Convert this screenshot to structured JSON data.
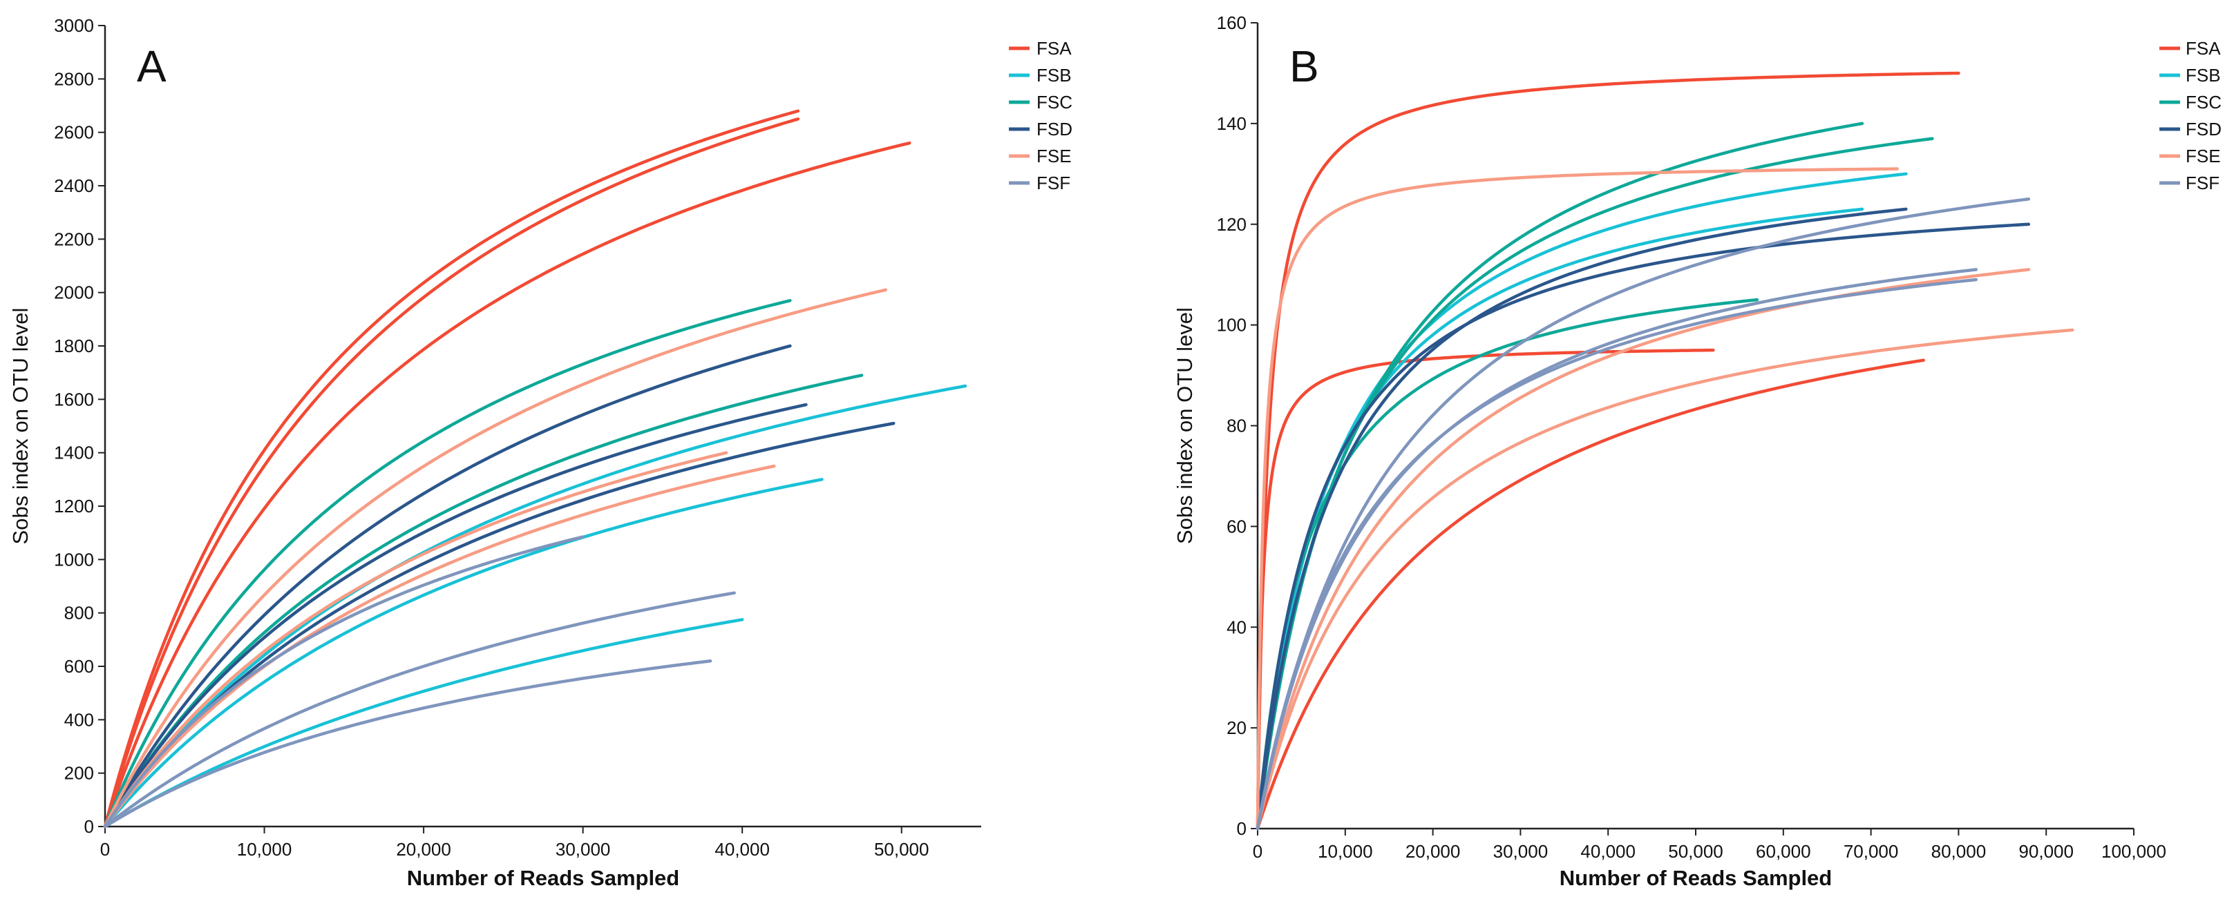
{
  "colors": {
    "FSA": "#f24a34",
    "FSB": "#18c1d6",
    "FSC": "#0ea898",
    "FSD": "#2a568b",
    "FSE": "#f79c84",
    "FSF": "#7f95bd",
    "axis": "#222222"
  },
  "chart_data": [
    {
      "type": "line",
      "panel_label": "A",
      "title": "",
      "xlabel": "Number of Reads Sampled",
      "ylabel": "Sobs index on OTU level",
      "xlim": [
        0,
        55000
      ],
      "ylim": [
        0,
        3000
      ],
      "x_ticks": [
        0,
        10000,
        20000,
        30000,
        40000,
        50000
      ],
      "x_tick_labels": [
        "0",
        "10,000",
        "20,000",
        "30,000",
        "40,000",
        "50,000"
      ],
      "y_ticks": [
        0,
        200,
        400,
        600,
        800,
        1000,
        1200,
        1400,
        1600,
        1800,
        2000,
        2200,
        2400,
        2600,
        2800,
        3000
      ],
      "y_tick_labels": [
        "0",
        "200",
        "400",
        "600",
        "800",
        "1000",
        "1200",
        "1400",
        "1600",
        "1800",
        "2000",
        "2200",
        "2400",
        "2600",
        "2800",
        "3000"
      ],
      "legend": [
        "FSA",
        "FSB",
        "FSC",
        "FSD",
        "FSE",
        "FSF"
      ],
      "legend_position": "right",
      "series": [
        {
          "name": "FSA",
          "max_reads": 43500,
          "final_sobs": 2680,
          "half_saturation": 16000
        },
        {
          "name": "FSA",
          "max_reads": 43500,
          "final_sobs": 2650,
          "half_saturation": 17500
        },
        {
          "name": "FSA",
          "max_reads": 50500,
          "final_sobs": 2560,
          "half_saturation": 20000
        },
        {
          "name": "FSB",
          "max_reads": 54000,
          "final_sobs": 1650,
          "half_saturation": 30000
        },
        {
          "name": "FSB",
          "max_reads": 45000,
          "final_sobs": 1300,
          "half_saturation": 30000
        },
        {
          "name": "FSB",
          "max_reads": 40000,
          "final_sobs": 775,
          "half_saturation": 45000
        },
        {
          "name": "FSC",
          "max_reads": 43000,
          "final_sobs": 1970,
          "half_saturation": 20000
        },
        {
          "name": "FSC",
          "max_reads": 47500,
          "final_sobs": 1690,
          "half_saturation": 26000
        },
        {
          "name": "FSD",
          "max_reads": 43000,
          "final_sobs": 1800,
          "half_saturation": 27000
        },
        {
          "name": "FSD",
          "max_reads": 44000,
          "final_sobs": 1580,
          "half_saturation": 25000
        },
        {
          "name": "FSD",
          "max_reads": 49500,
          "final_sobs": 1510,
          "half_saturation": 28000
        },
        {
          "name": "FSE",
          "max_reads": 49000,
          "final_sobs": 2010,
          "half_saturation": 25000
        },
        {
          "name": "FSE",
          "max_reads": 39000,
          "final_sobs": 1400,
          "half_saturation": 25000
        },
        {
          "name": "FSE",
          "max_reads": 42000,
          "final_sobs": 1350,
          "half_saturation": 27000
        },
        {
          "name": "FSF",
          "max_reads": 30000,
          "final_sobs": 1085,
          "half_saturation": 20000
        },
        {
          "name": "FSF",
          "max_reads": 39500,
          "final_sobs": 875,
          "half_saturation": 35000
        },
        {
          "name": "FSF",
          "max_reads": 38000,
          "final_sobs": 620,
          "half_saturation": 30000
        }
      ]
    },
    {
      "type": "line",
      "panel_label": "B",
      "title": "",
      "xlabel": "Number of Reads Sampled",
      "ylabel": "Sobs index on OTU level",
      "xlim": [
        0,
        100000
      ],
      "ylim": [
        0,
        160
      ],
      "x_ticks": [
        0,
        10000,
        20000,
        30000,
        40000,
        50000,
        60000,
        70000,
        80000,
        90000,
        100000
      ],
      "x_tick_labels": [
        "0",
        "10,000",
        "20,000",
        "30,000",
        "40,000",
        "50,000",
        "60,000",
        "70,000",
        "80,000",
        "90,000",
        "100,000"
      ],
      "y_ticks": [
        0,
        20,
        40,
        60,
        80,
        100,
        120,
        140,
        160
      ],
      "y_tick_labels": [
        "0",
        "20",
        "40",
        "60",
        "80",
        "100",
        "120",
        "140",
        "160"
      ],
      "legend": [
        "FSA",
        "FSB",
        "FSC",
        "FSD",
        "FSE",
        "FSF"
      ],
      "legend_position": "right",
      "series": [
        {
          "name": "FSA",
          "max_reads": 80000,
          "final_sobs": 150,
          "half_saturation": 1200
        },
        {
          "name": "FSA",
          "max_reads": 52000,
          "final_sobs": 95,
          "half_saturation": 600
        },
        {
          "name": "FSA",
          "max_reads": 76000,
          "final_sobs": 93,
          "half_saturation": 22000
        },
        {
          "name": "FSB",
          "max_reads": 74000,
          "final_sobs": 130,
          "half_saturation": 9000
        },
        {
          "name": "FSB",
          "max_reads": 69000,
          "final_sobs": 123,
          "half_saturation": 8000
        },
        {
          "name": "FSC",
          "max_reads": 69000,
          "final_sobs": 140,
          "half_saturation": 12000
        },
        {
          "name": "FSC",
          "max_reads": 77000,
          "final_sobs": 137,
          "half_saturation": 11000
        },
        {
          "name": "FSC",
          "max_reads": 57000,
          "final_sobs": 105,
          "half_saturation": 6000
        },
        {
          "name": "FSD",
          "max_reads": 74000,
          "final_sobs": 123,
          "half_saturation": 9000
        },
        {
          "name": "FSD",
          "max_reads": 88000,
          "final_sobs": 120,
          "half_saturation": 7000
        },
        {
          "name": "FSE",
          "max_reads": 73000,
          "final_sobs": 131,
          "half_saturation": 700
        },
        {
          "name": "FSE",
          "max_reads": 88000,
          "final_sobs": 111,
          "half_saturation": 16000
        },
        {
          "name": "FSE",
          "max_reads": 93000,
          "final_sobs": 99,
          "half_saturation": 15000
        },
        {
          "name": "FSF",
          "max_reads": 88000,
          "final_sobs": 125,
          "half_saturation": 16000
        },
        {
          "name": "FSF",
          "max_reads": 82000,
          "final_sobs": 111,
          "half_saturation": 14000
        },
        {
          "name": "FSF",
          "max_reads": 82000,
          "final_sobs": 109,
          "half_saturation": 13000
        }
      ]
    }
  ]
}
